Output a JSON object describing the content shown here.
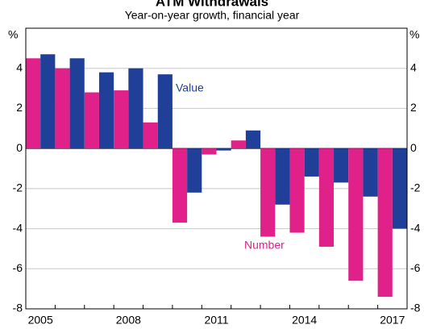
{
  "chart_data": {
    "type": "bar",
    "title": "ATM Withdrawals",
    "subtitle": "Year-on-year growth, financial year",
    "y_unit": "%",
    "categories": [
      "2005",
      null,
      null,
      "2008",
      null,
      null,
      "2011",
      null,
      null,
      "2014",
      null,
      null,
      "2017"
    ],
    "series": [
      {
        "name": "Number",
        "color": "#e0218a",
        "values": [
          4.5,
          4.0,
          2.8,
          2.9,
          1.3,
          -3.7,
          -0.3,
          0.4,
          -4.4,
          -4.2,
          -4.9,
          -6.6,
          -7.4
        ]
      },
      {
        "name": "Value",
        "color": "#1f3f99",
        "values": [
          4.7,
          4.5,
          3.8,
          4.0,
          3.7,
          -2.2,
          -0.1,
          0.9,
          -2.8,
          -1.4,
          -1.7,
          -2.4,
          -4.0
        ]
      }
    ],
    "ylim": [
      -8,
      6
    ],
    "yticks": [
      -8,
      -6,
      -4,
      -2,
      0,
      2,
      4
    ],
    "grid": true
  }
}
